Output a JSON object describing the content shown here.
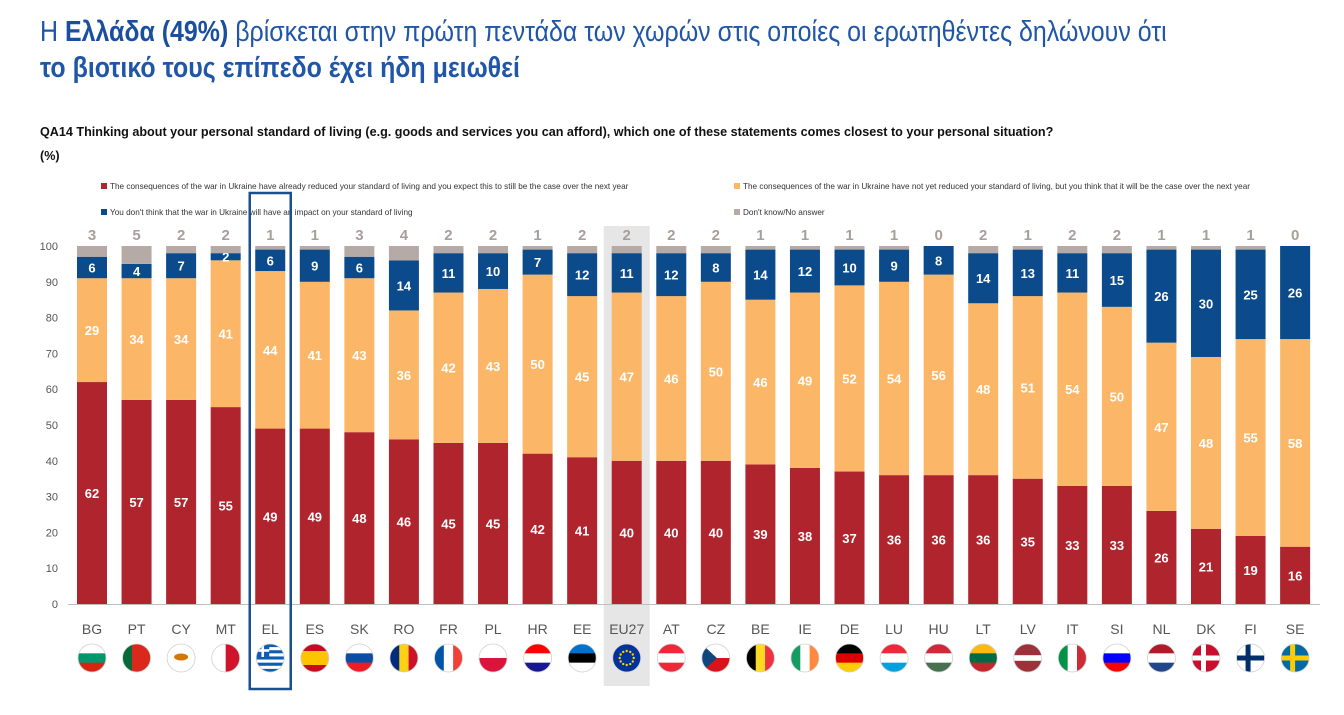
{
  "title": {
    "line1_prefix": "Η ",
    "line1_bold": "Ελλάδα (49%)",
    "line1_rest": " βρίσκεται στην πρώτη πεντάδα των χωρών στις οποίες οι ερωτηθέντες δηλώνουν ότι",
    "line2": "το βιοτικό τους επίπεδο έχει ήδη μειωθεί"
  },
  "question": {
    "text": "QA14 Thinking about your personal standard of living (e.g. goods and services you can afford), which one of these statements comes closest to your personal situation?",
    "unit": "(%)"
  },
  "chart_data": {
    "type": "bar",
    "stacked": true,
    "ylim": [
      0,
      100
    ],
    "yticks": [
      0,
      10,
      20,
      30,
      40,
      50,
      60,
      70,
      80,
      90,
      100
    ],
    "grid": false,
    "legend_placement": "top",
    "highlight": "EL",
    "reference": "EU27",
    "categories": [
      "BG",
      "PT",
      "CY",
      "MT",
      "EL",
      "ES",
      "SK",
      "RO",
      "FR",
      "PL",
      "HR",
      "EE",
      "EU27",
      "AT",
      "CZ",
      "BE",
      "IE",
      "DE",
      "LU",
      "HU",
      "LT",
      "LV",
      "IT",
      "SI",
      "NL",
      "DK",
      "FI",
      "SE"
    ],
    "series": [
      {
        "name": "The consequences of the war in Ukraine have already reduced your standard of living and you expect this to still be the case over the next year",
        "color": "#b0252d",
        "values": [
          62,
          57,
          57,
          55,
          49,
          49,
          48,
          46,
          45,
          45,
          42,
          41,
          40,
          40,
          40,
          39,
          38,
          37,
          36,
          36,
          36,
          35,
          33,
          33,
          26,
          21,
          19,
          16
        ]
      },
      {
        "name": "The consequences of the war in Ukraine have not yet reduced your standard of living, but you think that it will be the case over the next year",
        "color": "#fbb767",
        "values": [
          29,
          34,
          34,
          41,
          44,
          41,
          43,
          36,
          42,
          43,
          50,
          45,
          47,
          46,
          50,
          46,
          49,
          52,
          54,
          56,
          48,
          51,
          54,
          50,
          47,
          48,
          55,
          58
        ]
      },
      {
        "name": "You don't think that the war in Ukraine will have an impact on your standard of living",
        "color": "#0b4a8b",
        "values": [
          6,
          4,
          7,
          2,
          6,
          9,
          6,
          14,
          11,
          10,
          7,
          12,
          11,
          12,
          8,
          14,
          12,
          10,
          9,
          8,
          14,
          13,
          11,
          15,
          26,
          30,
          25,
          26
        ]
      },
      {
        "name": "Don't know/No answer",
        "color": "#b5aaa6",
        "values": [
          3,
          5,
          2,
          2,
          1,
          1,
          3,
          4,
          2,
          2,
          1,
          2,
          2,
          2,
          2,
          1,
          1,
          1,
          1,
          0,
          2,
          1,
          2,
          2,
          1,
          1,
          1,
          0
        ]
      }
    ]
  },
  "flags": {
    "BG": {
      "type": "h",
      "colors": [
        "#ffffff",
        "#00966e",
        "#d62612"
      ]
    },
    "PT": {
      "type": "v",
      "colors": [
        "#046a38",
        "#da291c",
        "#da291c"
      ]
    },
    "CY": {
      "type": "h",
      "colors": [
        "#ffffff"
      ],
      "mark": "#d57800"
    },
    "MT": {
      "type": "v",
      "colors": [
        "#ffffff",
        "#cf142b"
      ]
    },
    "EL": {
      "type": "h",
      "colors": [
        "#0d5eaf",
        "#ffffff",
        "#0d5eaf",
        "#ffffff",
        "#0d5eaf",
        "#ffffff",
        "#0d5eaf",
        "#ffffff",
        "#0d5eaf"
      ]
    },
    "ES": {
      "type": "h",
      "colors": [
        "#c60b1e",
        "#ffc400",
        "#ffc400",
        "#c60b1e"
      ]
    },
    "SK": {
      "type": "h",
      "colors": [
        "#ffffff",
        "#0b4ea2",
        "#ee1c25"
      ]
    },
    "RO": {
      "type": "v",
      "colors": [
        "#002b7f",
        "#fcd116",
        "#ce1126"
      ]
    },
    "FR": {
      "type": "v",
      "colors": [
        "#0055a4",
        "#ffffff",
        "#ef4135"
      ]
    },
    "PL": {
      "type": "h",
      "colors": [
        "#ffffff",
        "#dc143c"
      ]
    },
    "HR": {
      "type": "h",
      "colors": [
        "#ff0000",
        "#ffffff",
        "#171796"
      ]
    },
    "EE": {
      "type": "h",
      "colors": [
        "#0072ce",
        "#000000",
        "#ffffff"
      ]
    },
    "EU27": {
      "type": "eu",
      "colors": [
        "#003399",
        "#ffcc00"
      ]
    },
    "AT": {
      "type": "h",
      "colors": [
        "#ed2939",
        "#ffffff",
        "#ed2939"
      ]
    },
    "CZ": {
      "type": "h",
      "colors": [
        "#ffffff",
        "#d7141a"
      ],
      "mark": "#11457e"
    },
    "BE": {
      "type": "v",
      "colors": [
        "#000000",
        "#fdda24",
        "#ef3340"
      ]
    },
    "IE": {
      "type": "v",
      "colors": [
        "#169b62",
        "#ffffff",
        "#ff883e"
      ]
    },
    "DE": {
      "type": "h",
      "colors": [
        "#000000",
        "#dd0000",
        "#ffce00"
      ]
    },
    "LU": {
      "type": "h",
      "colors": [
        "#ed2939",
        "#ffffff",
        "#00a1de"
      ]
    },
    "HU": {
      "type": "h",
      "colors": [
        "#ce2939",
        "#ffffff",
        "#477050"
      ]
    },
    "LT": {
      "type": "h",
      "colors": [
        "#fdb913",
        "#006a44",
        "#c1272d"
      ]
    },
    "LV": {
      "type": "h",
      "colors": [
        "#9e3039",
        "#9e3039",
        "#ffffff",
        "#9e3039",
        "#9e3039"
      ]
    },
    "IT": {
      "type": "v",
      "colors": [
        "#009246",
        "#ffffff",
        "#ce2b37"
      ]
    },
    "SI": {
      "type": "h",
      "colors": [
        "#ffffff",
        "#0000ff",
        "#ff0000"
      ]
    },
    "NL": {
      "type": "h",
      "colors": [
        "#ae1c28",
        "#ffffff",
        "#21468b"
      ]
    },
    "DK": {
      "type": "cross",
      "colors": [
        "#c8102e",
        "#ffffff"
      ]
    },
    "FI": {
      "type": "cross",
      "colors": [
        "#ffffff",
        "#002f6c"
      ]
    },
    "SE": {
      "type": "cross",
      "colors": [
        "#006aa7",
        "#fecc00"
      ]
    }
  }
}
